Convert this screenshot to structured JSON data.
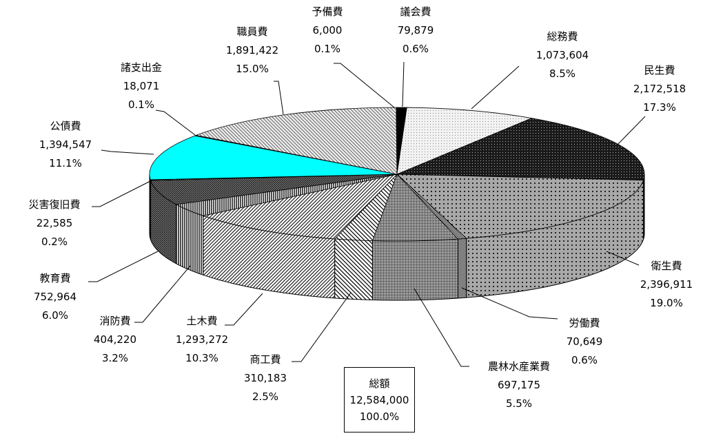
{
  "chart_data": {
    "type": "pie",
    "three_d": true,
    "total": {
      "label": "総額",
      "value": "12,584,000",
      "percent": "100.0%"
    },
    "slices": [
      {
        "name": "議会費",
        "value": 79879,
        "value_label": "79,879",
        "percent": "0.6%",
        "fill": "#000000"
      },
      {
        "name": "総務費",
        "value": 1073604,
        "value_label": "1,073,604",
        "percent": "8.5%",
        "fill": "pat-dots-light"
      },
      {
        "name": "民生費",
        "value": 2172518,
        "value_label": "2,172,518",
        "percent": "17.3%",
        "fill": "pat-dark"
      },
      {
        "name": "衛生費",
        "value": 2396911,
        "value_label": "2,396,911",
        "percent": "19.0%",
        "fill": "pat-dots-mid"
      },
      {
        "name": "労働費",
        "value": 70649,
        "value_label": "70,649",
        "percent": "0.6%",
        "fill": "pat-checker"
      },
      {
        "name": "農林水産業費",
        "value": 697175,
        "value_label": "697,175",
        "percent": "5.5%",
        "fill": "pat-grid"
      },
      {
        "name": "商工費",
        "value": 310183,
        "value_label": "310,183",
        "percent": "2.5%",
        "fill": "pat-zigzag"
      },
      {
        "name": "土木費",
        "value": 1293272,
        "value_label": "1,293,272",
        "percent": "10.3%",
        "fill": "pat-diag-up"
      },
      {
        "name": "消防費",
        "value": 404220,
        "value_label": "404,220",
        "percent": "3.2%",
        "fill": "pat-vert"
      },
      {
        "name": "教育費",
        "value": 752964,
        "value_label": "752,964",
        "percent": "6.0%",
        "fill": "pat-diag-dense"
      },
      {
        "name": "災害復旧費",
        "value": 22585,
        "value_label": "22,585",
        "percent": "0.2%",
        "fill": "pat-cross"
      },
      {
        "name": "公債費",
        "value": 1394547,
        "value_label": "1,394,547",
        "percent": "11.1%",
        "fill": "#00ffff"
      },
      {
        "name": "諸支出金",
        "value": 18071,
        "value_label": "18,071",
        "percent": "0.1%",
        "fill": "#555555"
      },
      {
        "name": "職員費",
        "value": 1891422,
        "value_label": "1,891,422",
        "percent": "15.0%",
        "fill": "pat-diag-down"
      },
      {
        "name": "予備費",
        "value": 6000,
        "value_label": "6,000",
        "percent": "0.1%",
        "fill": "#222222"
      }
    ]
  }
}
